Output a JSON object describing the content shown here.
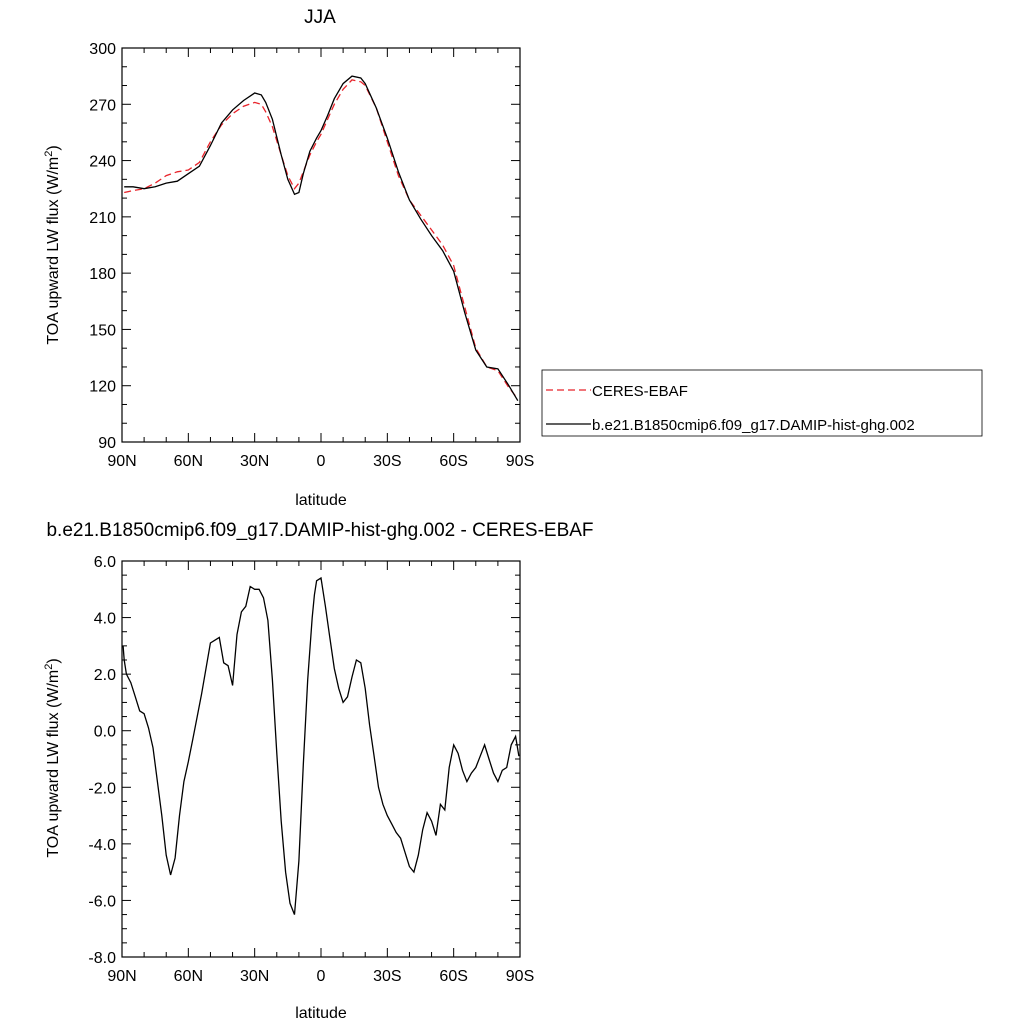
{
  "chart_data": [
    {
      "type": "line",
      "title": "JJA",
      "xlabel": "latitude",
      "ylabel": "TOA upward LW flux (W/m",
      "ylabel_sup": "2",
      "ylabel_close": ")",
      "xlim": [
        90,
        -90
      ],
      "ylim": [
        90,
        300
      ],
      "xticks": [
        90,
        60,
        30,
        0,
        -30,
        -60,
        -90
      ],
      "xticklabels": [
        "90N",
        "60N",
        "30N",
        "0",
        "30S",
        "60S",
        "90S"
      ],
      "yticks": [
        90,
        120,
        150,
        180,
        210,
        240,
        270,
        300
      ],
      "yticklabels": [
        "90",
        "120",
        "150",
        "180",
        "210",
        "240",
        "270",
        "300"
      ],
      "legend_placement": "right",
      "series": [
        {
          "name": "CERES-EBAF",
          "color": "#e8232a",
          "dash": "dashed",
          "x": [
            89,
            85,
            80,
            75,
            70,
            65,
            60,
            55,
            50,
            45,
            40,
            35,
            30,
            27,
            25,
            22,
            18,
            15,
            12,
            10,
            8,
            5,
            2,
            0,
            -3,
            -6,
            -10,
            -14,
            -18,
            -20,
            -25,
            -30,
            -35,
            -40,
            -45,
            -50,
            -55,
            -60,
            -65,
            -70,
            -75,
            -80,
            -85,
            -89
          ],
          "y": [
            223,
            224,
            225,
            228,
            232,
            234,
            235,
            239,
            250,
            259,
            265,
            269,
            271,
            270,
            266,
            258,
            243,
            232,
            225,
            228,
            234,
            243,
            250,
            254,
            262,
            270,
            278,
            283,
            282,
            280,
            268,
            250,
            232,
            219,
            211,
            203,
            195,
            184,
            162,
            140,
            130,
            128,
            119,
            113
          ]
        },
        {
          "name": "b.e21.B1850cmip6.f09_g17.DAMIP-hist-ghg.002",
          "color": "#000000",
          "dash": "solid",
          "x": [
            89,
            85,
            80,
            75,
            70,
            65,
            60,
            55,
            50,
            45,
            40,
            35,
            30,
            27,
            25,
            22,
            18,
            15,
            12,
            10,
            8,
            5,
            2,
            0,
            -3,
            -6,
            -10,
            -14,
            -18,
            -20,
            -25,
            -30,
            -35,
            -40,
            -45,
            -50,
            -55,
            -60,
            -65,
            -70,
            -75,
            -80,
            -85,
            -89
          ],
          "y": [
            226,
            226,
            225,
            226,
            228,
            229,
            233,
            237,
            248,
            260,
            267,
            272,
            276,
            275,
            271,
            262,
            243,
            230,
            222,
            223,
            233,
            245,
            252,
            256,
            264,
            273,
            281,
            285,
            284,
            281,
            268,
            252,
            234,
            219,
            209,
            200,
            192,
            181,
            159,
            139,
            130,
            129,
            120,
            112
          ]
        }
      ]
    },
    {
      "type": "line",
      "title": "b.e21.B1850cmip6.f09_g17.DAMIP-hist-ghg.002 - CERES-EBAF",
      "xlabel": "latitude",
      "ylabel": "TOA upward LW flux (W/m",
      "ylabel_sup": "2",
      "ylabel_close": ")",
      "xlim": [
        90,
        -90
      ],
      "ylim": [
        -8,
        6
      ],
      "xticks": [
        90,
        60,
        30,
        0,
        -30,
        -60,
        -90
      ],
      "xticklabels": [
        "90N",
        "60N",
        "30N",
        "0",
        "30S",
        "60S",
        "90S"
      ],
      "yticks": [
        -8,
        -6,
        -4,
        -2,
        0,
        2,
        4,
        6
      ],
      "yticklabels": [
        "-8.0",
        "-6.0",
        "-4.0",
        "-2.0",
        "0.0",
        "2.0",
        "4.0",
        "6.0"
      ],
      "series": [
        {
          "name": "",
          "color": "#000000",
          "dash": "solid",
          "x": [
            89.5,
            89,
            88,
            86,
            84,
            82,
            80,
            78,
            76,
            74,
            72,
            70,
            68,
            66,
            64,
            62,
            60,
            58,
            56,
            54,
            52,
            50,
            48,
            46,
            44,
            42,
            40,
            38,
            36,
            34,
            32,
            30,
            28,
            26,
            24,
            22,
            20,
            18,
            16,
            14,
            12,
            10,
            8,
            6,
            4,
            3,
            2,
            0,
            -2,
            -4,
            -6,
            -8,
            -10,
            -12,
            -14,
            -16,
            -18,
            -20,
            -22,
            -24,
            -26,
            -28,
            -30,
            -32,
            -34,
            -36,
            -38,
            -40,
            -42,
            -44,
            -46,
            -48,
            -50,
            -52,
            -54,
            -56,
            -58,
            -60,
            -62,
            -64,
            -66,
            -68,
            -70,
            -72,
            -74,
            -76,
            -78,
            -80,
            -82,
            -84,
            -86,
            -88,
            -89.5
          ],
          "y": [
            3.0,
            2.5,
            2.0,
            1.7,
            1.2,
            0.7,
            0.6,
            0.1,
            -0.6,
            -1.8,
            -3.0,
            -4.4,
            -5.1,
            -4.5,
            -3.0,
            -1.8,
            -1.1,
            -0.3,
            0.5,
            1.3,
            2.2,
            3.1,
            3.2,
            3.3,
            2.4,
            2.3,
            1.6,
            3.4,
            4.2,
            4.4,
            5.1,
            5.0,
            5.0,
            4.7,
            3.9,
            1.8,
            -0.8,
            -3.2,
            -5.0,
            -6.1,
            -6.5,
            -4.6,
            -1.2,
            1.8,
            4.0,
            4.8,
            5.3,
            5.4,
            4.4,
            3.3,
            2.2,
            1.5,
            1.0,
            1.2,
            1.9,
            2.5,
            2.4,
            1.5,
            0.2,
            -0.9,
            -2.0,
            -2.6,
            -3.0,
            -3.3,
            -3.6,
            -3.8,
            -4.3,
            -4.8,
            -5.0,
            -4.4,
            -3.5,
            -2.9,
            -3.2,
            -3.7,
            -2.6,
            -2.8,
            -1.3,
            -0.5,
            -0.8,
            -1.4,
            -1.8,
            -1.5,
            -1.3,
            -0.9,
            -0.5,
            -1.0,
            -1.5,
            -1.8,
            -1.4,
            -1.3,
            -0.5,
            -0.2,
            -0.9
          ]
        }
      ]
    }
  ]
}
